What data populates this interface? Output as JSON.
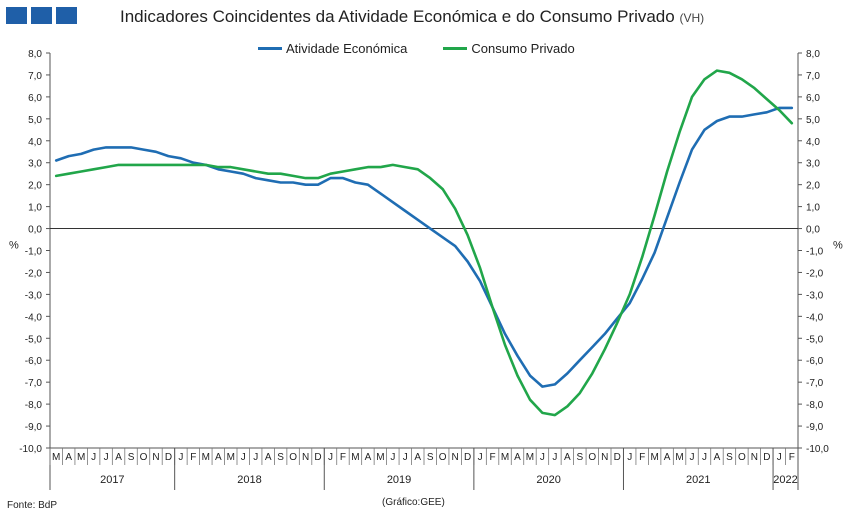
{
  "header": {
    "title": "Indicadores Coincidentes da Atividade Económica e do Consumo Privado",
    "title_suffix": "(VH)"
  },
  "footer": {
    "source": "Fonte: BdP",
    "credit": "(Gráfico:GEE)"
  },
  "colors": {
    "activity": "#1f6db3",
    "consumption": "#21a64a",
    "logo": "#1f5fa8"
  },
  "chart_data": {
    "type": "line",
    "title": "Indicadores Coincidentes da Atividade Económica e do Consumo Privado (VH)",
    "ylabel_left": "%",
    "ylabel_right": "%",
    "ylim": [
      -10,
      8
    ],
    "y_ticks": [
      "8,0",
      "7,0",
      "6,0",
      "5,0",
      "4,0",
      "3,0",
      "2,0",
      "1,0",
      "0,0",
      "-1,0",
      "-2,0",
      "-3,0",
      "-4,0",
      "-5,0",
      "-6,0",
      "-7,0",
      "-8,0",
      "-9,0",
      "-10,0"
    ],
    "month_labels": [
      "M",
      "A",
      "M",
      "J",
      "J",
      "A",
      "S",
      "O",
      "N",
      "D",
      "J",
      "F",
      "M",
      "A",
      "M",
      "J",
      "J",
      "A",
      "S",
      "O",
      "N",
      "D",
      "J",
      "F",
      "M",
      "A",
      "M",
      "J",
      "J",
      "A",
      "S",
      "O",
      "N",
      "D",
      "J",
      "F",
      "M",
      "A",
      "M",
      "J",
      "J",
      "A",
      "S",
      "O",
      "N",
      "D",
      "J",
      "F",
      "M",
      "A",
      "M",
      "J",
      "J",
      "A",
      "S",
      "O",
      "N",
      "D",
      "J",
      "F"
    ],
    "year_labels": [
      {
        "label": "2017",
        "start": 0,
        "end": 9
      },
      {
        "label": "2018",
        "start": 10,
        "end": 21
      },
      {
        "label": "2019",
        "start": 22,
        "end": 33
      },
      {
        "label": "2020",
        "start": 34,
        "end": 45
      },
      {
        "label": "2021",
        "start": 46,
        "end": 57
      },
      {
        "label": "2022",
        "start": 58,
        "end": 59
      }
    ],
    "legend": [
      "Atividade Económica",
      "Consumo Privado"
    ],
    "series": [
      {
        "name": "Atividade Económica",
        "values": [
          3.1,
          3.3,
          3.4,
          3.6,
          3.7,
          3.7,
          3.7,
          3.6,
          3.5,
          3.3,
          3.2,
          3.0,
          2.9,
          2.7,
          2.6,
          2.5,
          2.3,
          2.2,
          2.1,
          2.1,
          2.0,
          2.0,
          2.3,
          2.3,
          2.1,
          2.0,
          1.6,
          1.2,
          0.8,
          0.4,
          0.0,
          -0.4,
          -0.8,
          -1.5,
          -2.4,
          -3.6,
          -4.8,
          -5.8,
          -6.7,
          -7.2,
          -7.1,
          -6.6,
          -6.0,
          -5.4,
          -4.8,
          -4.1,
          -3.4,
          -2.3,
          -1.1,
          0.5,
          2.1,
          3.6,
          4.5,
          4.9,
          5.1,
          5.1,
          5.2,
          5.3,
          5.5,
          5.5
        ]
      },
      {
        "name": "Consumo Privado",
        "values": [
          2.4,
          2.5,
          2.6,
          2.7,
          2.8,
          2.9,
          2.9,
          2.9,
          2.9,
          2.9,
          2.9,
          2.9,
          2.9,
          2.8,
          2.8,
          2.7,
          2.6,
          2.5,
          2.5,
          2.4,
          2.3,
          2.3,
          2.5,
          2.6,
          2.7,
          2.8,
          2.8,
          2.9,
          2.8,
          2.7,
          2.3,
          1.8,
          0.9,
          -0.3,
          -1.8,
          -3.6,
          -5.3,
          -6.7,
          -7.8,
          -8.4,
          -8.5,
          -8.1,
          -7.5,
          -6.6,
          -5.5,
          -4.3,
          -3.0,
          -1.3,
          0.6,
          2.6,
          4.4,
          6.0,
          6.8,
          7.2,
          7.1,
          6.8,
          6.4,
          5.9,
          5.4,
          4.8
        ]
      }
    ]
  }
}
